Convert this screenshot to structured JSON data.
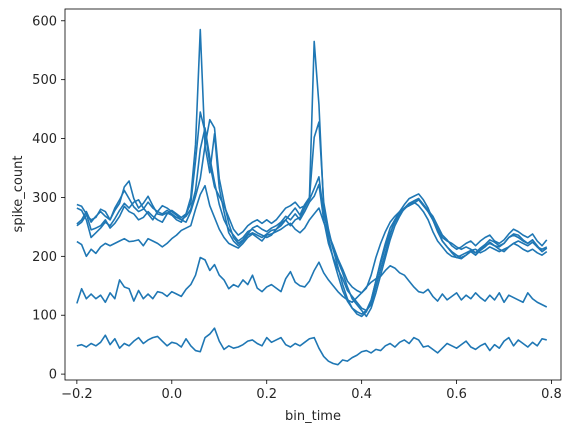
{
  "chart_data": {
    "type": "line",
    "xlabel": "bin_time",
    "ylabel": "spike_count",
    "xlim": [
      -0.225,
      0.82
    ],
    "ylim": [
      -10,
      620
    ],
    "xticks": [
      -0.2,
      0.0,
      0.2,
      0.4,
      0.6,
      0.8
    ],
    "xtick_labels": [
      "−0.2",
      "0.0",
      "0.2",
      "0.4",
      "0.6",
      "0.8"
    ],
    "yticks": [
      0,
      100,
      200,
      300,
      400,
      500,
      600
    ],
    "ytick_labels": [
      "0",
      "100",
      "200",
      "300",
      "400",
      "500",
      "600"
    ],
    "line_color": "#1f77b4",
    "grid": false,
    "x": [
      -0.2,
      -0.19,
      -0.18,
      -0.17,
      -0.16,
      -0.15,
      -0.14,
      -0.13,
      -0.12,
      -0.11,
      -0.1,
      -0.09,
      -0.08,
      -0.07,
      -0.06,
      -0.05,
      -0.04,
      -0.03,
      -0.02,
      -0.01,
      0.0,
      0.01,
      0.02,
      0.03,
      0.04,
      0.05,
      0.06,
      0.07,
      0.08,
      0.09,
      0.1,
      0.11,
      0.12,
      0.13,
      0.14,
      0.15,
      0.16,
      0.17,
      0.18,
      0.19,
      0.2,
      0.21,
      0.22,
      0.23,
      0.24,
      0.25,
      0.26,
      0.27,
      0.28,
      0.29,
      0.3,
      0.31,
      0.32,
      0.33,
      0.34,
      0.35,
      0.36,
      0.37,
      0.38,
      0.39,
      0.4,
      0.41,
      0.42,
      0.43,
      0.44,
      0.45,
      0.46,
      0.47,
      0.48,
      0.49,
      0.5,
      0.51,
      0.52,
      0.53,
      0.54,
      0.55,
      0.56,
      0.57,
      0.58,
      0.59,
      0.6,
      0.61,
      0.62,
      0.63,
      0.64,
      0.65,
      0.66,
      0.67,
      0.68,
      0.69,
      0.7,
      0.71,
      0.72,
      0.73,
      0.74,
      0.75,
      0.76,
      0.77,
      0.78,
      0.79
    ],
    "series": [
      {
        "values": [
          288,
          285,
          272,
          245,
          248,
          252,
          262,
          248,
          256,
          268,
          285,
          276,
          272,
          262,
          266,
          276,
          268,
          262,
          258,
          272,
          278,
          272,
          266,
          272,
          290,
          362,
          445,
          412,
          358,
          318,
          302,
          286,
          266,
          246,
          236,
          242,
          252,
          258,
          262,
          256,
          262,
          256,
          262,
          272,
          282,
          286,
          292,
          282,
          286,
          296,
          315,
          335,
          272,
          242,
          212,
          192,
          172,
          148,
          128,
          118,
          108,
          98,
          112,
          138,
          168,
          198,
          228,
          252,
          268,
          282,
          290,
          294,
          298,
          288,
          278,
          268,
          252,
          236,
          228,
          218,
          212,
          216,
          222,
          226,
          218,
          226,
          232,
          236,
          226,
          222,
          228,
          238,
          246,
          242,
          236,
          232,
          238,
          226,
          218,
          228
        ]
      },
      {
        "values": [
          282,
          278,
          262,
          232,
          240,
          248,
          258,
          252,
          264,
          278,
          290,
          282,
          292,
          296,
          282,
          272,
          262,
          276,
          286,
          282,
          276,
          270,
          262,
          258,
          276,
          302,
          332,
          388,
          432,
          418,
          332,
          292,
          256,
          232,
          222,
          228,
          238,
          248,
          252,
          246,
          242,
          248,
          252,
          258,
          268,
          262,
          272,
          262,
          276,
          292,
          302,
          322,
          262,
          222,
          198,
          178,
          162,
          142,
          132,
          122,
          112,
          108,
          118,
          148,
          178,
          206,
          236,
          262,
          276,
          288,
          298,
          302,
          306,
          296,
          282,
          262,
          242,
          226,
          216,
          208,
          202,
          198,
          202,
          208,
          202,
          210,
          216,
          224,
          218,
          216,
          222,
          232,
          236,
          232,
          226,
          222,
          228,
          216,
          208,
          214
        ]
      },
      {
        "values": [
          255,
          262,
          276,
          258,
          268,
          276,
          268,
          262,
          282,
          296,
          312,
          298,
          284,
          276,
          280,
          292,
          282,
          276,
          272,
          278,
          272,
          266,
          262,
          268,
          280,
          312,
          382,
          418,
          368,
          326,
          288,
          262,
          246,
          236,
          226,
          232,
          242,
          246,
          240,
          236,
          232,
          236,
          246,
          256,
          262,
          252,
          262,
          266,
          282,
          298,
          402,
          428,
          292,
          246,
          212,
          182,
          152,
          128,
          112,
          102,
          98,
          106,
          124,
          158,
          192,
          222,
          248,
          262,
          272,
          282,
          286,
          290,
          296,
          286,
          276,
          262,
          246,
          232,
          226,
          222,
          216,
          212,
          216,
          212,
          206,
          212,
          218,
          222,
          218,
          212,
          208,
          216,
          222,
          226,
          222,
          218,
          224,
          216,
          212,
          216
        ]
      },
      {
        "values": [
          252,
          258,
          270,
          262,
          266,
          280,
          276,
          262,
          278,
          290,
          318,
          328,
          298,
          282,
          290,
          302,
          286,
          272,
          270,
          274,
          270,
          262,
          258,
          272,
          300,
          390,
          585,
          388,
          342,
          408,
          316,
          276,
          240,
          226,
          218,
          226,
          236,
          240,
          236,
          232,
          238,
          244,
          246,
          252,
          262,
          272,
          282,
          270,
          288,
          300,
          565,
          458,
          282,
          232,
          196,
          168,
          142,
          124,
          112,
          106,
          102,
          108,
          126,
          158,
          188,
          216,
          240,
          258,
          272,
          280,
          288,
          294,
          298,
          288,
          276,
          262,
          246,
          226,
          216,
          206,
          198,
          196,
          202,
          210,
          206,
          214,
          220,
          228,
          224,
          218,
          222,
          232,
          238,
          236,
          228,
          222,
          228,
          218,
          208,
          214
        ]
      },
      {
        "values": [
          225,
          220,
          200,
          212,
          205,
          216,
          222,
          218,
          222,
          226,
          230,
          225,
          226,
          228,
          218,
          230,
          226,
          222,
          216,
          222,
          230,
          236,
          244,
          248,
          252,
          280,
          305,
          320,
          286,
          266,
          246,
          232,
          222,
          218,
          214,
          222,
          232,
          238,
          232,
          226,
          236,
          238,
          242,
          246,
          252,
          256,
          246,
          240,
          248,
          262,
          272,
          282,
          258,
          238,
          218,
          196,
          178,
          158,
          148,
          142,
          138,
          146,
          168,
          198,
          222,
          242,
          258,
          268,
          276,
          282,
          286,
          292,
          286,
          276,
          262,
          242,
          226,
          216,
          206,
          200,
          198,
          202,
          206,
          210,
          212,
          206,
          210,
          216,
          212,
          208,
          212,
          216,
          222,
          218,
          212,
          208,
          212,
          206,
          202,
          208
        ]
      },
      {
        "values": [
          120,
          145,
          128,
          136,
          128,
          134,
          122,
          138,
          128,
          160,
          148,
          145,
          124,
          142,
          128,
          136,
          128,
          140,
          138,
          132,
          140,
          136,
          132,
          144,
          152,
          168,
          198,
          194,
          176,
          186,
          168,
          160,
          145,
          152,
          148,
          160,
          152,
          168,
          146,
          140,
          148,
          152,
          146,
          140,
          162,
          174,
          156,
          150,
          148,
          158,
          176,
          190,
          172,
          160,
          150,
          140,
          132,
          126,
          122,
          130,
          138,
          148,
          156,
          162,
          166,
          176,
          184,
          180,
          172,
          168,
          158,
          148,
          140,
          138,
          144,
          132,
          124,
          136,
          126,
          132,
          138,
          126,
          134,
          128,
          138,
          130,
          124,
          134,
          126,
          138,
          122,
          134,
          130,
          126,
          122,
          138,
          128,
          122,
          118,
          114
        ]
      },
      {
        "values": [
          48,
          50,
          46,
          52,
          48,
          54,
          66,
          50,
          60,
          44,
          52,
          48,
          56,
          62,
          52,
          58,
          62,
          64,
          56,
          48,
          54,
          52,
          46,
          60,
          48,
          40,
          38,
          62,
          68,
          78,
          56,
          42,
          48,
          44,
          46,
          50,
          56,
          58,
          52,
          48,
          62,
          54,
          58,
          62,
          50,
          46,
          52,
          48,
          54,
          60,
          62,
          44,
          30,
          22,
          18,
          16,
          24,
          22,
          28,
          32,
          38,
          40,
          36,
          42,
          40,
          48,
          52,
          46,
          54,
          58,
          52,
          62,
          58,
          46,
          48,
          42,
          36,
          44,
          52,
          48,
          44,
          50,
          56,
          46,
          42,
          48,
          52,
          40,
          50,
          44,
          56,
          62,
          48,
          58,
          52,
          46,
          54,
          48,
          60,
          58
        ]
      }
    ]
  }
}
